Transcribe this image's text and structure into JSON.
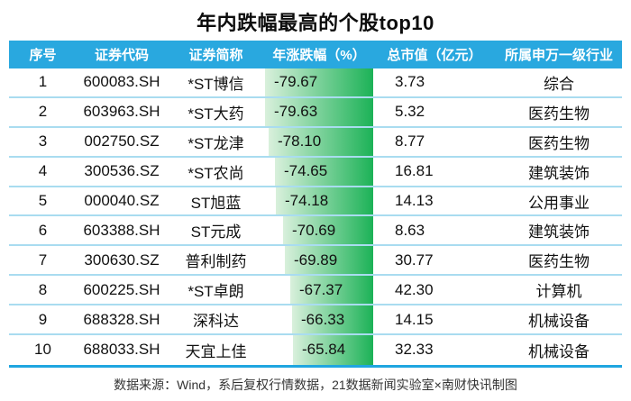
{
  "chart_data": {
    "type": "table",
    "title": "年内跌幅最高的个股top10",
    "columns": [
      "序号",
      "证券代码",
      "证券简称",
      "年涨跌幅（%）",
      "总市值（亿元）",
      "所属申万一级行业"
    ],
    "rows": [
      {
        "rank": "1",
        "code": "600083.SH",
        "name": "*ST博信",
        "change": "-79.67",
        "market_cap": "3.73",
        "industry": "综合"
      },
      {
        "rank": "2",
        "code": "603963.SH",
        "name": "*ST大药",
        "change": "-79.63",
        "market_cap": "5.32",
        "industry": "医药生物"
      },
      {
        "rank": "3",
        "code": "002750.SZ",
        "name": "*ST龙津",
        "change": "-78.10",
        "market_cap": "8.77",
        "industry": "医药生物"
      },
      {
        "rank": "4",
        "code": "300536.SZ",
        "name": "*ST农尚",
        "change": "-74.65",
        "market_cap": "16.81",
        "industry": "建筑装饰"
      },
      {
        "rank": "5",
        "code": "000040.SZ",
        "name": "ST旭蓝",
        "change": "-74.18",
        "market_cap": "14.13",
        "industry": "公用事业"
      },
      {
        "rank": "6",
        "code": "603388.SH",
        "name": "ST元成",
        "change": "-70.69",
        "market_cap": "8.63",
        "industry": "建筑装饰"
      },
      {
        "rank": "7",
        "code": "300630.SZ",
        "name": "普利制药",
        "change": "-69.89",
        "market_cap": "30.77",
        "industry": "医药生物"
      },
      {
        "rank": "8",
        "code": "600225.SH",
        "name": "*ST卓朗",
        "change": "-67.37",
        "market_cap": "42.30",
        "industry": "计算机"
      },
      {
        "rank": "9",
        "code": "688328.SH",
        "name": "深科达",
        "change": "-66.33",
        "market_cap": "14.15",
        "industry": "机械设备"
      },
      {
        "rank": "10",
        "code": "688033.SH",
        "name": "天宜上佳",
        "change": "-65.84",
        "market_cap": "32.33",
        "industry": "机械设备"
      }
    ],
    "bar_column_index": 3,
    "bar_direction": "right-aligned-grows-left",
    "source": "数据来源：Wind，系后复权行情数据，21数据新闻实验室×南财快讯制图"
  },
  "colors": {
    "header_bg": "#29A8DF",
    "header_text": "#FFFFFF",
    "row_separator": "#A9DCF0",
    "bottom_line": "#1FA6E0",
    "bar_gradient_start": "#D9F0DC",
    "bar_gradient_end": "#1CB257",
    "body_text": "#111111",
    "footer_text": "#333333"
  }
}
